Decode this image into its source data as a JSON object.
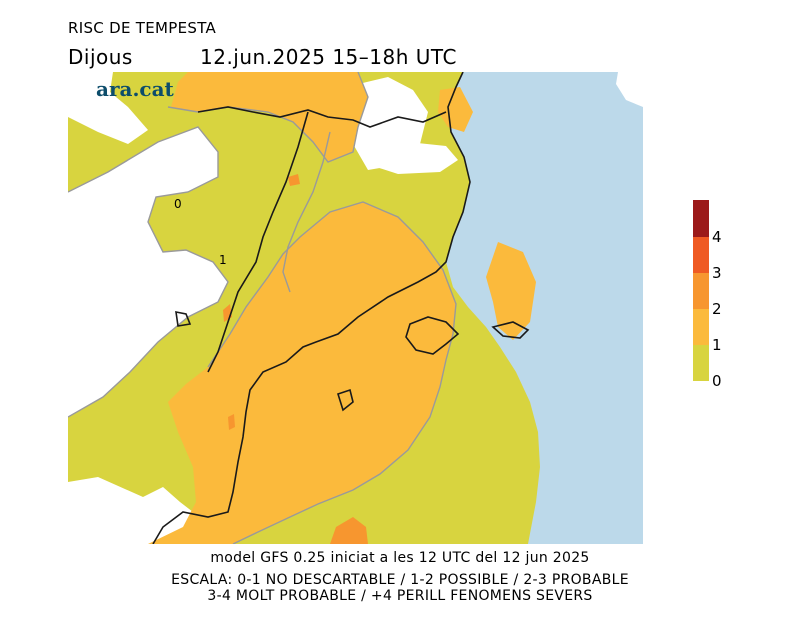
{
  "title": "RISC DE TEMPESTA",
  "subtitle": {
    "day": "Dijous",
    "datetime": "12.jun.2025 15–18h UTC"
  },
  "logo": "ara.cat",
  "map_labels": {
    "contour_0": "0",
    "contour_1": "1"
  },
  "colors": {
    "sea": "#bcd9ea",
    "level_0_1": "#d8d43f",
    "level_1_2": "#fbba3c",
    "level_2_3": "#f7962f",
    "level_3_4": "#ef5a23",
    "level_4_plus": "#9c1a1a",
    "white_area": "#ffffff"
  },
  "colorbar": {
    "ticks": [
      "0",
      "1",
      "2",
      "3",
      "4"
    ]
  },
  "footer": {
    "line1": "model GFS 0.25 iniciat a les 12 UTC del 12 jun 2025",
    "line2": "ESCALA: 0-1 NO DESCARTABLE / 1-2 POSSIBLE / 2-3 PROBABLE",
    "line3": "3-4 MOLT PROBABLE / +4 PERILL FENOMENS SEVERS"
  }
}
